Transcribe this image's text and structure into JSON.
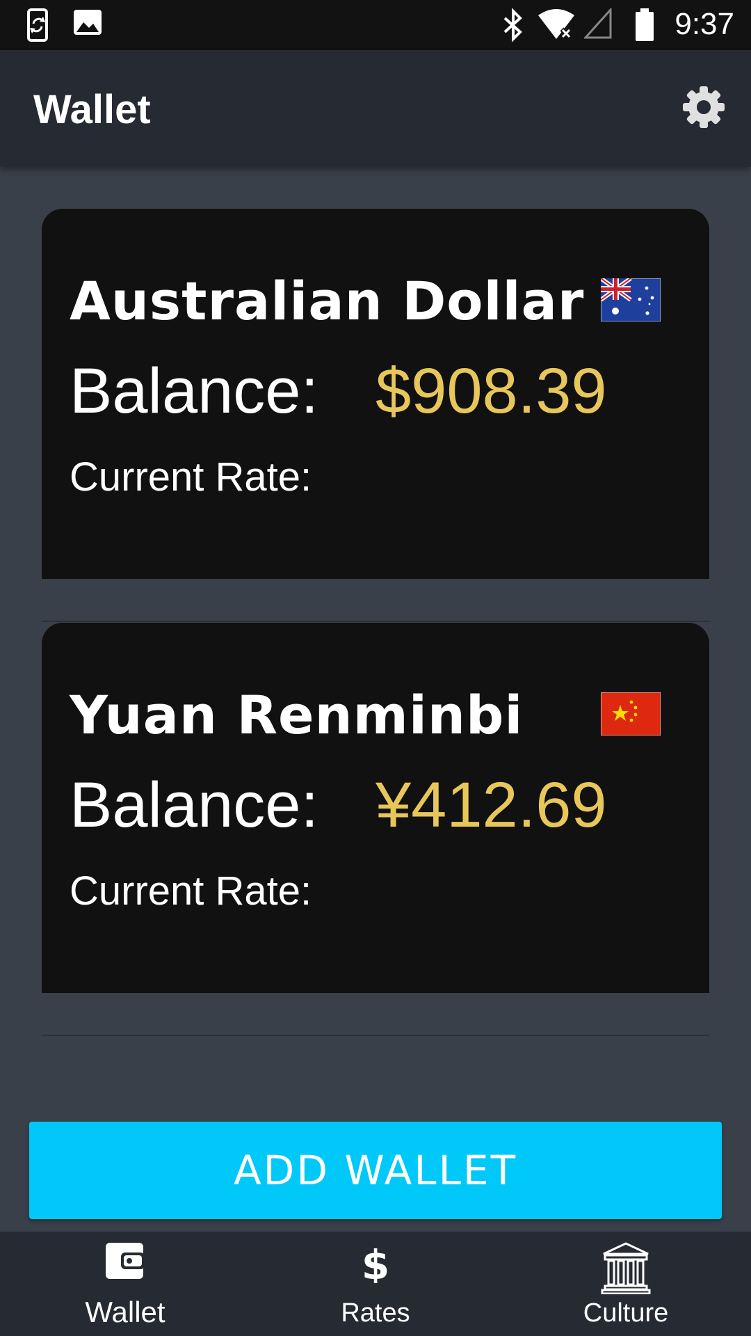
{
  "status_bar": {
    "time": "9:37",
    "icons": [
      "phone-sync-icon",
      "image-icon",
      "bluetooth-icon",
      "wifi-icon",
      "signal-icon",
      "battery-icon"
    ]
  },
  "app_bar": {
    "title": "Wallet",
    "settings_icon": "gear-icon"
  },
  "wallets": [
    {
      "currency_name": "Australian Dollar",
      "balance_label": "Balance:",
      "balance_value": "$908.39",
      "rate_label": "Current Rate:",
      "flag": "australia-flag-icon"
    },
    {
      "currency_name": "Yuan Renminbi",
      "balance_label": "Balance:",
      "balance_value": "¥412.69",
      "rate_label": "Current Rate:",
      "flag": "china-flag-icon"
    }
  ],
  "add_wallet_label": "ADD WALLET",
  "bottom_nav": {
    "items": [
      {
        "label": "Wallet",
        "icon": "wallet-icon",
        "active": true
      },
      {
        "label": "Rates",
        "icon": "dollar-icon",
        "active": false
      },
      {
        "label": "Culture",
        "icon": "museum-icon",
        "active": false
      }
    ]
  },
  "colors": {
    "background": "#394049",
    "app_bar": "#262a32",
    "card": "#111111",
    "balance_accent": "#e8c75a",
    "button": "#00c9fa"
  }
}
